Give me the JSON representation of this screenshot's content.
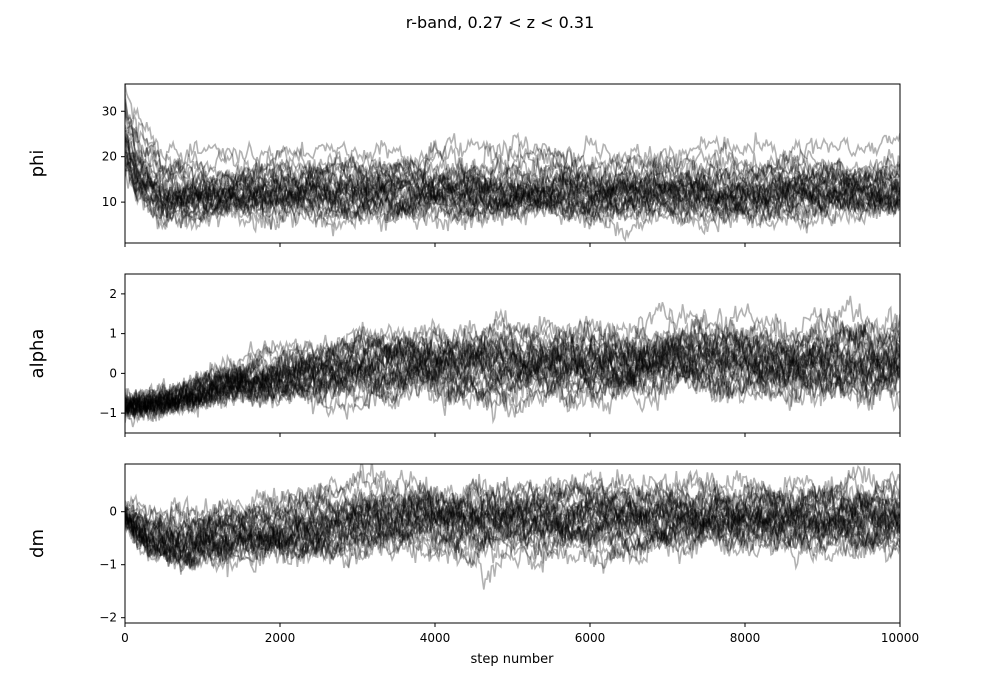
{
  "chart_data": {
    "type": "line",
    "title": "r-band, 0.27 < z < 0.31",
    "xlabel": "step number",
    "xlim": [
      0,
      10000
    ],
    "x_ticks": [
      0,
      2000,
      4000,
      6000,
      8000,
      10000
    ],
    "x_tick_labels": [
      "0",
      "2000",
      "4000",
      "6000",
      "8000",
      "10000"
    ],
    "grid": false,
    "line_color": "#000000",
    "line_opacity": 0.3,
    "walkers": 32,
    "panels": [
      {
        "ylabel": "phi",
        "ylim": [
          1,
          36
        ],
        "y_ticks": [
          10,
          20,
          30
        ],
        "y_tick_labels": [
          "10",
          "20",
          "30"
        ],
        "trend": {
          "x": [
            0,
            150,
            500,
            1000,
            3000,
            6000,
            10000
          ],
          "y": [
            24,
            18,
            12,
            12.5,
            13,
            12.8,
            13
          ]
        },
        "spread": {
          "x": [
            0,
            500,
            10000
          ],
          "y": [
            4.5,
            3,
            3
          ]
        },
        "noise": 0.9
      },
      {
        "ylabel": "alpha",
        "ylim": [
          -1.5,
          2.5
        ],
        "y_ticks": [
          -1,
          0,
          1,
          2
        ],
        "y_tick_labels": [
          "−1",
          "0",
          "1",
          "2"
        ],
        "trend": {
          "x": [
            0,
            500,
            1500,
            3000,
            5000,
            7000,
            10000
          ],
          "y": [
            -0.85,
            -0.7,
            -0.2,
            0.15,
            0.25,
            0.3,
            0.3
          ]
        },
        "spread": {
          "x": [
            0,
            1500,
            3500,
            10000
          ],
          "y": [
            0.12,
            0.25,
            0.45,
            0.5
          ]
        },
        "noise": 0.12
      },
      {
        "ylabel": "dm",
        "ylim": [
          -2.1,
          0.9
        ],
        "y_ticks": [
          -2,
          -1,
          0
        ],
        "y_tick_labels": [
          "−2",
          "−1",
          "0"
        ],
        "trend": {
          "x": [
            0,
            300,
            700,
            1500,
            3000,
            5000,
            8000,
            10000
          ],
          "y": [
            -0.05,
            -0.45,
            -0.55,
            -0.4,
            -0.15,
            -0.1,
            -0.1,
            -0.15
          ]
        },
        "spread": {
          "x": [
            0,
            700,
            3000,
            10000
          ],
          "y": [
            0.1,
            0.28,
            0.3,
            0.3
          ]
        },
        "noise": 0.09
      }
    ]
  }
}
